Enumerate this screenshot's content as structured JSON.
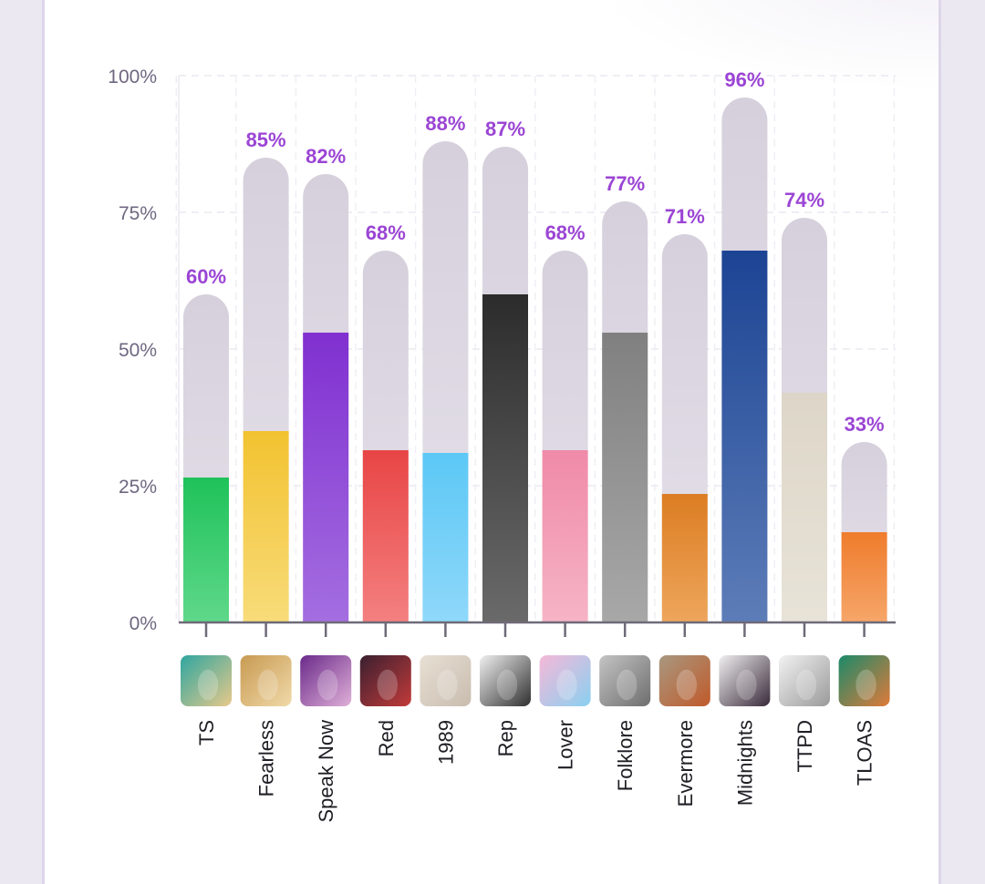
{
  "chart_data": {
    "type": "bar",
    "title": "",
    "xlabel": "",
    "ylabel": "",
    "ylim": [
      0,
      100
    ],
    "yticks": [
      "0%",
      "25%",
      "50%",
      "75%",
      "100%"
    ],
    "grid": true,
    "categories": [
      "TS",
      "Fearless",
      "Speak Now",
      "Red",
      "1989",
      "Rep",
      "Lover",
      "Folklore",
      "Evermore",
      "Midnights",
      "TTPD",
      "TLOAS"
    ],
    "value_labels": [
      "60%",
      "85%",
      "82%",
      "68%",
      "88%",
      "87%",
      "68%",
      "77%",
      "71%",
      "96%",
      "74%",
      "33%"
    ],
    "series": [
      {
        "values": [
          60,
          85,
          82,
          68,
          88,
          87,
          68,
          77,
          71,
          96,
          74,
          33
        ]
      },
      {
        "values": [
          26.5,
          35,
          53,
          31.5,
          31,
          60,
          31.5,
          53,
          23.5,
          68,
          42,
          16.5
        ]
      }
    ],
    "colors": {
      "outer_bar": "#ddd8e3",
      "label": "#9b45d4",
      "fills": [
        [
          "#1fc25a",
          "#5fd88a"
        ],
        [
          "#f2c230",
          "#f8dc7a"
        ],
        [
          "#8030d0",
          "#a46ee0"
        ],
        [
          "#e84545",
          "#f48080"
        ],
        [
          "#5cc8f5",
          "#8fd8fa"
        ],
        [
          "#2c2c2c",
          "#6a6a6a"
        ],
        [
          "#f08aa8",
          "#f6b4c6"
        ],
        [
          "#808080",
          "#a8a8a8"
        ],
        [
          "#dc7d22",
          "#eea65c"
        ],
        [
          "#1c4494",
          "#5d7db8"
        ],
        [
          "#ddd6c8",
          "#e8e3d8"
        ],
        [
          "#ef7c2c",
          "#f6a66a"
        ]
      ]
    },
    "album_icons": [
      "ts-cover-icon",
      "fearless-cover-icon",
      "speak-now-cover-icon",
      "red-cover-icon",
      "1989-cover-icon",
      "rep-cover-icon",
      "lover-cover-icon",
      "folklore-cover-icon",
      "evermore-cover-icon",
      "midnights-cover-icon",
      "ttpd-cover-icon",
      "tloas-cover-icon"
    ],
    "album_icon_colors": [
      [
        "#2fa6a0",
        "#e7c98a"
      ],
      [
        "#c89a52",
        "#f0d9a8"
      ],
      [
        "#6a2a8a",
        "#e0b0d8"
      ],
      [
        "#3a2030",
        "#c23a3a"
      ],
      [
        "#e8e0d4",
        "#c8bcae"
      ],
      [
        "#f0f0f0",
        "#303030"
      ],
      [
        "#f6b8d8",
        "#8ad0f0"
      ],
      [
        "#c4c4c4",
        "#6e6e6e"
      ],
      [
        "#a89880",
        "#c05a2a"
      ],
      [
        "#f0f0f0",
        "#3a2a3a"
      ],
      [
        "#f2f2f2",
        "#9a9a9a"
      ],
      [
        "#1a8a6a",
        "#e07a3a"
      ]
    ]
  }
}
